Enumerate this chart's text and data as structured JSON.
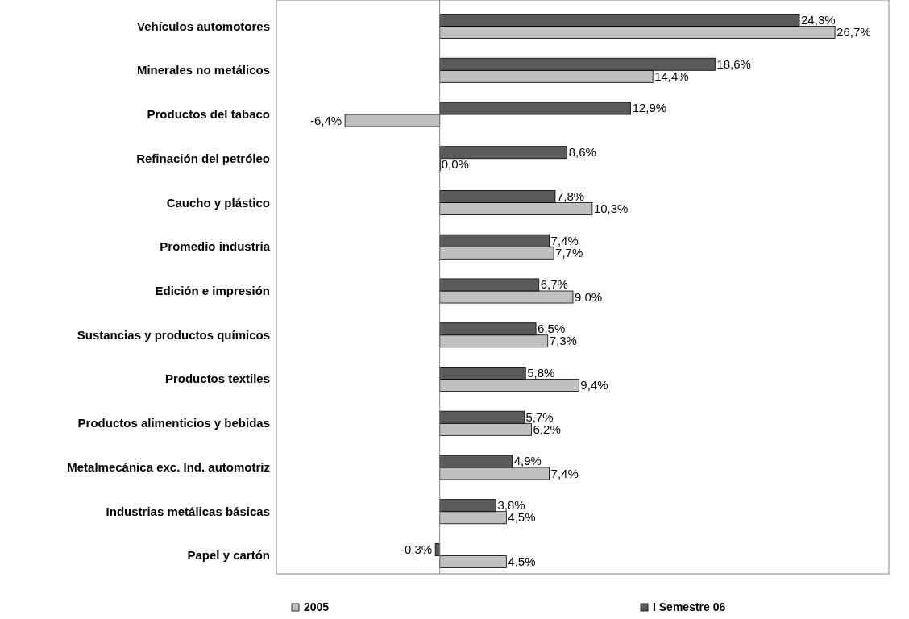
{
  "chart_data": {
    "type": "bar",
    "orientation": "horizontal",
    "legend": "bottom",
    "categories": [
      "Vehículos automotores",
      "Minerales no metálicos",
      "Productos del tabaco",
      "Refinación del petróleo",
      "Caucho y plástico",
      "Promedio industria",
      "Edición e impresión",
      "Sustancias y productos químicos",
      "Productos textiles",
      "Productos alimenticios y bebidas",
      "Metalmecánica exc. Ind. automotriz",
      "Industrias metálicas básicas",
      "Papel y cartón"
    ],
    "series": [
      {
        "name": "2005",
        "color": "#c0c0c0",
        "values": [
          26.7,
          14.4,
          -6.4,
          0.0,
          10.3,
          7.7,
          9.0,
          7.3,
          9.4,
          6.2,
          7.4,
          4.5,
          4.5
        ],
        "value_labels": [
          "26,7%",
          "14,4%",
          "-6,4%",
          "0,0%",
          "10,3%",
          "7,7%",
          "9,0%",
          "7,3%",
          "9,4%",
          "6,2%",
          "7,4%",
          "4,5%",
          "4,5%"
        ]
      },
      {
        "name": "I Semestre 06",
        "color": "#5a5a5a",
        "values": [
          24.3,
          18.6,
          12.9,
          8.6,
          7.8,
          7.4,
          6.7,
          6.5,
          5.8,
          5.7,
          4.9,
          3.8,
          -0.3
        ],
        "value_labels": [
          "24,3%",
          "18,6%",
          "12,9%",
          "8,6%",
          "7,8%",
          "7,4%",
          "6,7%",
          "6,5%",
          "5,8%",
          "5,7%",
          "4,9%",
          "3,8%",
          "-0,3%"
        ]
      }
    ]
  }
}
